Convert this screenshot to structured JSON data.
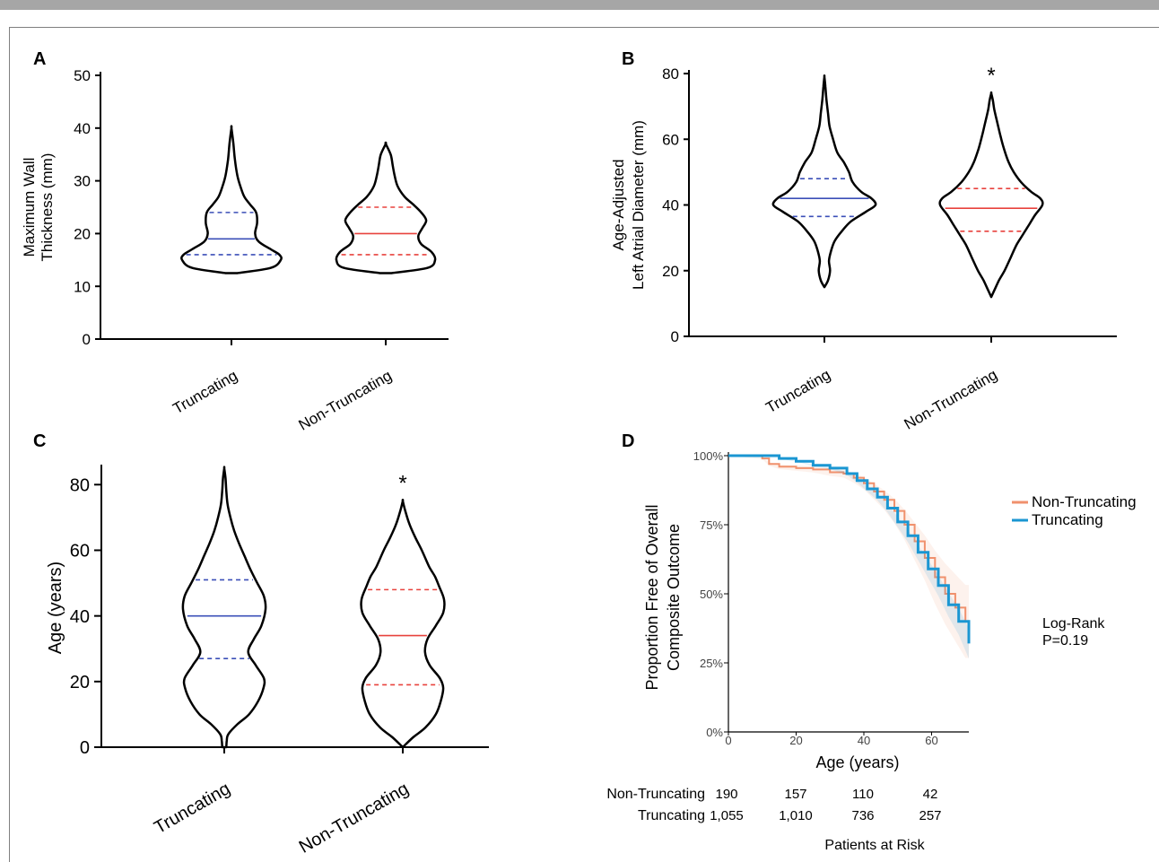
{
  "panels": {
    "A": {
      "label": "A"
    },
    "B": {
      "label": "B"
    },
    "C": {
      "label": "C"
    },
    "D": {
      "label": "D"
    }
  },
  "chart_data": [
    {
      "panel": "A",
      "type": "violin",
      "ylabel": [
        "Maximum Wall",
        "Thickness (mm)"
      ],
      "ylim": [
        0,
        50
      ],
      "yticks": [
        0,
        10,
        20,
        30,
        40,
        50
      ],
      "categories": [
        "Truncating",
        "Non-Truncating"
      ],
      "series": [
        {
          "category": "Truncating",
          "color": "#3b4fb8",
          "min": 12.5,
          "max": 40,
          "q1": 16,
          "median": 19,
          "q3": 24,
          "shape": [
            [
              12.5,
              0.12
            ],
            [
              13.5,
              0.8
            ],
            [
              15,
              1.0
            ],
            [
              16,
              0.97
            ],
            [
              17,
              0.8
            ],
            [
              18.5,
              0.55
            ],
            [
              20,
              0.48
            ],
            [
              22,
              0.52
            ],
            [
              24,
              0.5
            ],
            [
              25.5,
              0.38
            ],
            [
              27,
              0.26
            ],
            [
              29,
              0.18
            ],
            [
              31,
              0.12
            ],
            [
              34,
              0.07
            ],
            [
              37,
              0.04
            ],
            [
              40,
              0.0
            ]
          ],
          "significant": false
        },
        {
          "category": "Non-Truncating",
          "color": "#e8423d",
          "min": 12.5,
          "max": 37,
          "q1": 16,
          "median": 20,
          "q3": 25,
          "shape": [
            [
              12.5,
              0.12
            ],
            [
              13.5,
              0.85
            ],
            [
              15,
              1.0
            ],
            [
              16.5,
              0.93
            ],
            [
              18,
              0.72
            ],
            [
              19.5,
              0.66
            ],
            [
              21,
              0.74
            ],
            [
              22.5,
              0.82
            ],
            [
              24,
              0.72
            ],
            [
              25.5,
              0.56
            ],
            [
              27,
              0.38
            ],
            [
              29,
              0.24
            ],
            [
              31,
              0.18
            ],
            [
              33,
              0.14
            ],
            [
              35,
              0.1
            ],
            [
              37,
              0.0
            ]
          ],
          "significant": false
        }
      ]
    },
    {
      "panel": "B",
      "type": "violin",
      "ylabel": [
        "Age-Adjusted",
        "Left Atrial Diameter (mm)"
      ],
      "ylim": [
        0,
        80
      ],
      "yticks": [
        0,
        20,
        40,
        60,
        80
      ],
      "categories": [
        "Truncating",
        "Non-Truncating"
      ],
      "series": [
        {
          "category": "Truncating",
          "color": "#3b4fb8",
          "min": 15,
          "max": 79,
          "q1": 36.5,
          "median": 42,
          "q3": 48,
          "shape": [
            [
              15,
              0.0
            ],
            [
              17,
              0.07
            ],
            [
              20,
              0.11
            ],
            [
              23,
              0.09
            ],
            [
              26,
              0.13
            ],
            [
              29,
              0.2
            ],
            [
              32,
              0.34
            ],
            [
              35,
              0.52
            ],
            [
              38,
              0.82
            ],
            [
              40,
              1.0
            ],
            [
              42,
              0.92
            ],
            [
              44,
              0.72
            ],
            [
              47,
              0.55
            ],
            [
              50,
              0.48
            ],
            [
              53,
              0.38
            ],
            [
              56,
              0.25
            ],
            [
              60,
              0.17
            ],
            [
              64,
              0.1
            ],
            [
              68,
              0.07
            ],
            [
              72,
              0.04
            ],
            [
              76,
              0.02
            ],
            [
              79,
              0.0
            ]
          ],
          "significant": false
        },
        {
          "category": "Non-Truncating",
          "color": "#e8423d",
          "min": 12,
          "max": 74,
          "q1": 32,
          "median": 39,
          "q3": 45,
          "shape": [
            [
              12,
              0.0
            ],
            [
              14,
              0.06
            ],
            [
              17,
              0.15
            ],
            [
              20,
              0.26
            ],
            [
              24,
              0.38
            ],
            [
              28,
              0.5
            ],
            [
              31,
              0.62
            ],
            [
              34,
              0.74
            ],
            [
              37,
              0.86
            ],
            [
              40,
              1.0
            ],
            [
              42,
              0.96
            ],
            [
              44,
              0.78
            ],
            [
              47,
              0.58
            ],
            [
              50,
              0.44
            ],
            [
              53,
              0.34
            ],
            [
              57,
              0.25
            ],
            [
              61,
              0.18
            ],
            [
              65,
              0.12
            ],
            [
              69,
              0.06
            ],
            [
              72,
              0.03
            ],
            [
              74,
              0.0
            ]
          ],
          "significant": true,
          "marker": "*"
        }
      ]
    },
    {
      "panel": "C",
      "type": "violin",
      "ylabel": [
        "Age (years)"
      ],
      "ylim": [
        0,
        85
      ],
      "yticks": [
        0,
        20,
        40,
        60,
        80
      ],
      "categories": [
        "Truncating",
        "Non-Truncating"
      ],
      "series": [
        {
          "category": "Truncating",
          "color": "#3b4fb8",
          "min": 0,
          "max": 85,
          "q1": 27,
          "median": 40,
          "q3": 51,
          "shape": [
            [
              0,
              0.05
            ],
            [
              2,
              0.06
            ],
            [
              4,
              0.1
            ],
            [
              7,
              0.32
            ],
            [
              10,
              0.6
            ],
            [
              14,
              0.82
            ],
            [
              18,
              0.95
            ],
            [
              21,
              0.96
            ],
            [
              25,
              0.76
            ],
            [
              29,
              0.58
            ],
            [
              33,
              0.72
            ],
            [
              37,
              0.9
            ],
            [
              42,
              1.0
            ],
            [
              46,
              0.96
            ],
            [
              50,
              0.8
            ],
            [
              54,
              0.64
            ],
            [
              58,
              0.5
            ],
            [
              62,
              0.36
            ],
            [
              66,
              0.24
            ],
            [
              70,
              0.15
            ],
            [
              74,
              0.08
            ],
            [
              78,
              0.05
            ],
            [
              82,
              0.03
            ],
            [
              85,
              0.0
            ]
          ],
          "significant": false
        },
        {
          "category": "Non-Truncating",
          "color": "#e8423d",
          "min": 0,
          "max": 75,
          "q1": 19,
          "median": 34,
          "q3": 48,
          "shape": [
            [
              0,
              0.0
            ],
            [
              3,
              0.25
            ],
            [
              6,
              0.55
            ],
            [
              10,
              0.8
            ],
            [
              14,
              0.92
            ],
            [
              18,
              0.98
            ],
            [
              21,
              0.9
            ],
            [
              25,
              0.65
            ],
            [
              29,
              0.54
            ],
            [
              33,
              0.6
            ],
            [
              37,
              0.8
            ],
            [
              41,
              0.98
            ],
            [
              45,
              1.0
            ],
            [
              49,
              0.88
            ],
            [
              52,
              0.78
            ],
            [
              55,
              0.64
            ],
            [
              60,
              0.46
            ],
            [
              64,
              0.3
            ],
            [
              68,
              0.16
            ],
            [
              72,
              0.06
            ],
            [
              75,
              0.0
            ]
          ],
          "significant": true,
          "marker": "*"
        }
      ]
    },
    {
      "panel": "D",
      "type": "line",
      "subtype": "kaplan-meier",
      "xlabel": "Age (years)",
      "ylabel": [
        "Proportion Free of Overall",
        "Composite Outcome"
      ],
      "xlim": [
        0,
        71
      ],
      "ylim": [
        0,
        1
      ],
      "xticks": [
        "0",
        "20",
        "40",
        "60"
      ],
      "yticks": [
        "0%",
        "25%",
        "50%",
        "75%",
        "100%"
      ],
      "legend_position": "right",
      "annotation": [
        "Log-Rank",
        "P=0.19"
      ],
      "series": [
        {
          "name": "Non-Truncating",
          "color": "#f0916d",
          "x": [
            0,
            10,
            12,
            15,
            20,
            25,
            30,
            34,
            37,
            40,
            43,
            46,
            49,
            52,
            55,
            58,
            61,
            64,
            67,
            70,
            71
          ],
          "y": [
            1.0,
            0.99,
            0.97,
            0.96,
            0.955,
            0.95,
            0.94,
            0.935,
            0.92,
            0.9,
            0.87,
            0.84,
            0.8,
            0.75,
            0.69,
            0.63,
            0.56,
            0.5,
            0.45,
            0.4,
            0.4
          ]
        },
        {
          "name": "Truncating",
          "color": "#1a96d2",
          "x": [
            0,
            15,
            20,
            25,
            30,
            35,
            38,
            41,
            44,
            47,
            50,
            53,
            56,
            59,
            62,
            65,
            68,
            71
          ],
          "y": [
            1.0,
            0.99,
            0.98,
            0.965,
            0.955,
            0.935,
            0.91,
            0.88,
            0.85,
            0.81,
            0.76,
            0.71,
            0.65,
            0.59,
            0.53,
            0.46,
            0.4,
            0.32
          ]
        }
      ],
      "risk_table": {
        "title": "Patients at Risk",
        "rows": [
          {
            "name": "Non-Truncating",
            "values": [
              "190",
              "157",
              "110",
              "42"
            ]
          },
          {
            "name": "Truncating",
            "values": [
              "1,055",
              "1,010",
              "736",
              "257"
            ]
          }
        ]
      }
    }
  ]
}
